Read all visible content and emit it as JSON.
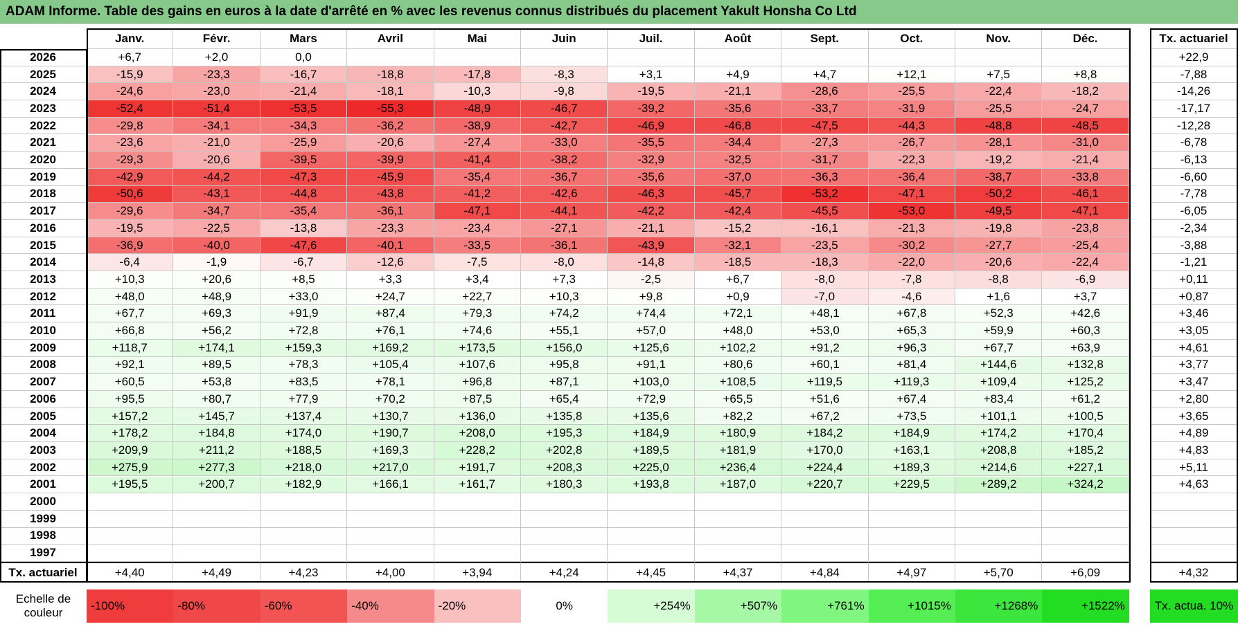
{
  "header": {
    "title": "ADAM Informe. Table des gains en euros à la date d'arrêté en % avec les revenus connus distribués du placement Yakult Honsha Co Ltd"
  },
  "table": {
    "columns": [
      "Janv.",
      "Févr.",
      "Mars",
      "Avril",
      "Mai",
      "Juin",
      "Juil.",
      "Août",
      "Sept.",
      "Oct.",
      "Nov.",
      "Déc."
    ],
    "rate_header": "Tx. actuariel",
    "rows": [
      {
        "year": "2026",
        "cells": [
          "+6,7",
          "+2,0",
          "0,0",
          null,
          null,
          null,
          null,
          null,
          null,
          null,
          null,
          null
        ],
        "rate": "+22,9"
      },
      {
        "year": "2025",
        "cells": [
          "-15,9",
          "-23,3",
          "-16,7",
          "-18,8",
          "-17,8",
          "-8,3",
          "+3,1",
          "+4,9",
          "+4,7",
          "+12,1",
          "+7,5",
          "+8,8"
        ],
        "rate": "-7,88"
      },
      {
        "year": "2024",
        "cells": [
          "-24,6",
          "-23,0",
          "-21,4",
          "-18,1",
          "-10,3",
          "-9,8",
          "-19,5",
          "-21,1",
          "-28,6",
          "-25,5",
          "-22,4",
          "-18,2"
        ],
        "rate": "-14,26"
      },
      {
        "year": "2023",
        "cells": [
          "-52,4",
          "-51,4",
          "-53,5",
          "-55,3",
          "-48,9",
          "-46,7",
          "-39,2",
          "-35,6",
          "-33,7",
          "-31,9",
          "-25,5",
          "-24,7"
        ],
        "rate": "-17,17"
      },
      {
        "year": "2022",
        "cells": [
          "-29,8",
          "-34,1",
          "-34,3",
          "-36,2",
          "-38,9",
          "-42,7",
          "-46,9",
          "-46,8",
          "-47,5",
          "-44,3",
          "-48,8",
          "-48,5"
        ],
        "rate": "-12,28"
      },
      {
        "year": "2021",
        "cells": [
          "-23,6",
          "-21,0",
          "-25,9",
          "-20,6",
          "-27,4",
          "-33,0",
          "-35,5",
          "-34,4",
          "-27,3",
          "-26,7",
          "-28,1",
          "-31,0"
        ],
        "rate": "-6,78"
      },
      {
        "year": "2020",
        "cells": [
          "-29,3",
          "-20,6",
          "-39,5",
          "-39,9",
          "-41,4",
          "-38,2",
          "-32,9",
          "-32,5",
          "-31,7",
          "-22,3",
          "-19,2",
          "-21,4"
        ],
        "rate": "-6,13"
      },
      {
        "year": "2019",
        "cells": [
          "-42,9",
          "-44,2",
          "-47,3",
          "-45,9",
          "-35,4",
          "-36,7",
          "-35,6",
          "-37,0",
          "-36,3",
          "-36,4",
          "-38,7",
          "-33,8"
        ],
        "rate": "-6,60"
      },
      {
        "year": "2018",
        "cells": [
          "-50,6",
          "-43,1",
          "-44,8",
          "-43,8",
          "-41,2",
          "-42,6",
          "-46,3",
          "-45,7",
          "-53,2",
          "-47,1",
          "-50,2",
          "-46,1"
        ],
        "rate": "-7,78"
      },
      {
        "year": "2017",
        "cells": [
          "-29,6",
          "-34,7",
          "-35,4",
          "-36,1",
          "-47,1",
          "-44,1",
          "-42,2",
          "-42,4",
          "-45,5",
          "-53,0",
          "-49,5",
          "-47,1"
        ],
        "rate": "-6,05"
      },
      {
        "year": "2016",
        "cells": [
          "-19,5",
          "-22,5",
          "-13,8",
          "-23,3",
          "-23,4",
          "-27,1",
          "-21,1",
          "-15,2",
          "-16,1",
          "-21,3",
          "-19,8",
          "-23,8"
        ],
        "rate": "-2,34"
      },
      {
        "year": "2015",
        "cells": [
          "-36,9",
          "-40,0",
          "-47,6",
          "-40,1",
          "-33,5",
          "-36,1",
          "-43,9",
          "-32,1",
          "-23,5",
          "-30,2",
          "-27,7",
          "-25,4"
        ],
        "rate": "-3,88"
      },
      {
        "year": "2014",
        "cells": [
          "-6,4",
          "-1,9",
          "-6,7",
          "-12,6",
          "-7,5",
          "-8,0",
          "-14,8",
          "-18,5",
          "-18,3",
          "-22,0",
          "-20,6",
          "-22,4"
        ],
        "rate": "-1,21"
      },
      {
        "year": "2013",
        "cells": [
          "+10,3",
          "+20,6",
          "+8,5",
          "+3,3",
          "+3,4",
          "+7,3",
          "-2,5",
          "+6,7",
          "-8,0",
          "-7,8",
          "-8,8",
          "-6,9"
        ],
        "rate": "+0,11"
      },
      {
        "year": "2012",
        "cells": [
          "+48,0",
          "+48,9",
          "+33,0",
          "+24,7",
          "+22,7",
          "+10,3",
          "+9,8",
          "+0,9",
          "-7,0",
          "-4,6",
          "+1,6",
          "+3,7"
        ],
        "rate": "+0,87"
      },
      {
        "year": "2011",
        "cells": [
          "+67,7",
          "+69,3",
          "+91,9",
          "+87,4",
          "+79,3",
          "+74,2",
          "+74,4",
          "+72,1",
          "+48,1",
          "+67,8",
          "+52,3",
          "+42,6"
        ],
        "rate": "+3,46"
      },
      {
        "year": "2010",
        "cells": [
          "+66,8",
          "+56,2",
          "+72,8",
          "+76,1",
          "+74,6",
          "+55,1",
          "+57,0",
          "+48,0",
          "+53,0",
          "+65,3",
          "+59,9",
          "+60,3"
        ],
        "rate": "+3,05"
      },
      {
        "year": "2009",
        "cells": [
          "+118,7",
          "+174,1",
          "+159,3",
          "+169,2",
          "+173,5",
          "+156,0",
          "+125,6",
          "+102,2",
          "+91,2",
          "+96,3",
          "+67,7",
          "+63,9"
        ],
        "rate": "+4,61"
      },
      {
        "year": "2008",
        "cells": [
          "+92,1",
          "+89,5",
          "+78,3",
          "+105,4",
          "+107,6",
          "+95,8",
          "+91,1",
          "+80,6",
          "+60,1",
          "+81,4",
          "+144,6",
          "+132,8"
        ],
        "rate": "+3,77"
      },
      {
        "year": "2007",
        "cells": [
          "+60,5",
          "+53,8",
          "+83,5",
          "+78,1",
          "+96,8",
          "+87,1",
          "+103,0",
          "+108,5",
          "+119,5",
          "+119,3",
          "+109,4",
          "+125,2"
        ],
        "rate": "+3,47"
      },
      {
        "year": "2006",
        "cells": [
          "+95,5",
          "+80,7",
          "+77,9",
          "+70,2",
          "+87,5",
          "+65,4",
          "+72,9",
          "+65,5",
          "+51,6",
          "+67,4",
          "+83,4",
          "+61,2"
        ],
        "rate": "+2,80"
      },
      {
        "year": "2005",
        "cells": [
          "+157,2",
          "+145,7",
          "+137,4",
          "+130,7",
          "+136,0",
          "+135,8",
          "+135,6",
          "+82,2",
          "+67,2",
          "+73,5",
          "+101,1",
          "+100,5"
        ],
        "rate": "+3,65"
      },
      {
        "year": "2004",
        "cells": [
          "+178,2",
          "+184,8",
          "+174,0",
          "+190,7",
          "+208,0",
          "+195,3",
          "+184,9",
          "+180,9",
          "+184,2",
          "+184,9",
          "+174,2",
          "+170,4"
        ],
        "rate": "+4,89"
      },
      {
        "year": "2003",
        "cells": [
          "+209,9",
          "+211,2",
          "+188,5",
          "+169,3",
          "+228,2",
          "+202,8",
          "+189,5",
          "+181,9",
          "+170,0",
          "+163,1",
          "+208,8",
          "+185,2"
        ],
        "rate": "+4,83"
      },
      {
        "year": "2002",
        "cells": [
          "+275,9",
          "+277,3",
          "+218,0",
          "+217,0",
          "+191,7",
          "+208,3",
          "+225,0",
          "+236,4",
          "+224,4",
          "+189,3",
          "+214,6",
          "+227,1"
        ],
        "rate": "+5,11"
      },
      {
        "year": "2001",
        "cells": [
          "+195,5",
          "+200,7",
          "+182,9",
          "+166,1",
          "+161,7",
          "+180,3",
          "+193,8",
          "+187,0",
          "+220,7",
          "+229,5",
          "+289,2",
          "+324,2"
        ],
        "rate": "+4,63"
      },
      {
        "year": "2000",
        "cells": [
          null,
          null,
          null,
          null,
          null,
          null,
          null,
          null,
          null,
          null,
          null,
          null
        ],
        "rate": null
      },
      {
        "year": "1999",
        "cells": [
          null,
          null,
          null,
          null,
          null,
          null,
          null,
          null,
          null,
          null,
          null,
          null
        ],
        "rate": null
      },
      {
        "year": "1998",
        "cells": [
          null,
          null,
          null,
          null,
          null,
          null,
          null,
          null,
          null,
          null,
          null,
          null
        ],
        "rate": null
      },
      {
        "year": "1997",
        "cells": [
          null,
          null,
          null,
          null,
          null,
          null,
          null,
          null,
          null,
          null,
          null,
          null
        ],
        "rate": null
      }
    ],
    "footer": {
      "label": "Tx. actuariel",
      "cells": [
        "+4,40",
        "+4,49",
        "+4,23",
        "+4,00",
        "+3,94",
        "+4,24",
        "+4,45",
        "+4,37",
        "+4,84",
        "+4,97",
        "+5,70",
        "+6,09"
      ],
      "rate": "+4,32"
    }
  },
  "scale": {
    "label": "Echelle de couleur",
    "items": [
      "-100%",
      "-80%",
      "-60%",
      "-40%",
      "-20%",
      "0%",
      "+254%",
      "+507%",
      "+761%",
      "+1015%",
      "+1268%",
      "+1522%"
    ],
    "rate_label": "Tx. actua. 10%"
  }
}
